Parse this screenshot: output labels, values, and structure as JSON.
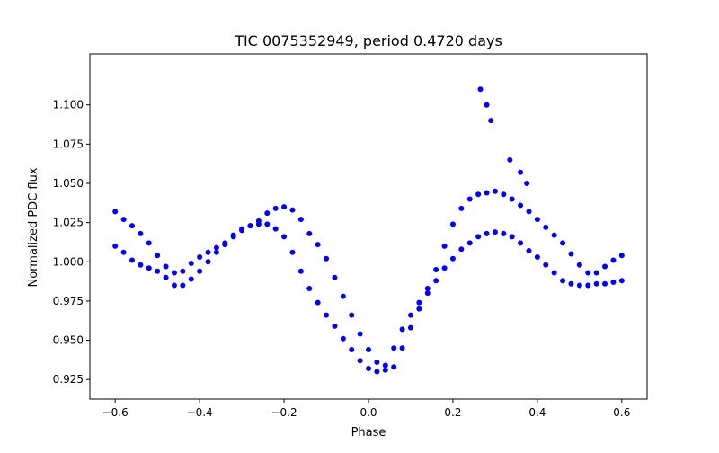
{
  "chart_data": {
    "type": "scatter",
    "title": "TIC 0075352949, period 0.4720 days",
    "xlabel": "Phase",
    "ylabel": "Normalized PDC flux",
    "xlim": [
      -0.66,
      0.66
    ],
    "ylim": [
      0.9125,
      1.1325
    ],
    "xticks": [
      -0.6,
      -0.4,
      -0.2,
      0.0,
      0.2,
      0.4,
      0.6
    ],
    "xtick_labels": [
      "−0.6",
      "−0.4",
      "−0.2",
      "0.0",
      "0.2",
      "0.4",
      "0.6"
    ],
    "yticks": [
      0.925,
      0.95,
      0.975,
      1.0,
      1.025,
      1.05,
      1.075,
      1.1
    ],
    "ytick_labels": [
      "0.925",
      "0.950",
      "0.975",
      "1.000",
      "1.025",
      "1.050",
      "1.075",
      "1.100"
    ],
    "grid": false,
    "marker_color": "#0000ff",
    "series": [
      {
        "x": [
          -0.6,
          -0.58,
          -0.56,
          -0.54,
          -0.52,
          -0.5,
          -0.48,
          -0.46,
          -0.44,
          -0.42,
          -0.4,
          -0.38,
          -0.36,
          -0.34,
          -0.32,
          -0.3,
          -0.28,
          -0.26,
          -0.24,
          -0.22,
          -0.2,
          -0.18,
          -0.16,
          -0.14,
          -0.12,
          -0.1,
          -0.08,
          -0.06,
          -0.04,
          -0.02,
          0.0,
          0.02,
          0.04,
          0.06,
          0.08,
          0.1,
          0.12,
          0.14,
          0.16,
          0.18,
          0.2,
          0.22,
          0.24,
          0.26,
          0.28,
          0.3,
          0.32,
          0.34,
          0.36,
          0.38,
          0.4,
          0.42,
          0.44,
          0.46,
          0.48,
          0.5,
          0.52,
          0.54,
          0.56,
          0.58,
          0.6
        ],
        "y": [
          1.032,
          1.027,
          1.023,
          1.018,
          1.012,
          1.004,
          0.997,
          0.993,
          0.994,
          0.999,
          1.003,
          1.006,
          1.009,
          1.012,
          1.017,
          1.021,
          1.023,
          1.024,
          1.024,
          1.021,
          1.016,
          1.006,
          0.994,
          0.983,
          0.974,
          0.966,
          0.959,
          0.951,
          0.944,
          0.937,
          0.932,
          0.93,
          0.934,
          0.945,
          0.957,
          0.966,
          0.974,
          0.983,
          0.995,
          1.01,
          1.024,
          1.034,
          1.04,
          1.043,
          1.044,
          1.045,
          1.043,
          1.04,
          1.036,
          1.032,
          1.027,
          1.022,
          1.017,
          1.012,
          1.005,
          0.998,
          0.993,
          0.993,
          0.997,
          1.001,
          1.004
        ]
      },
      {
        "x": [
          -0.6,
          -0.58,
          -0.56,
          -0.54,
          -0.52,
          -0.5,
          -0.48,
          -0.46,
          -0.44,
          -0.42,
          -0.4,
          -0.38,
          -0.36,
          -0.34,
          -0.32,
          -0.3,
          -0.28,
          -0.26,
          -0.24,
          -0.22,
          -0.2,
          -0.18,
          -0.16,
          -0.14,
          -0.12,
          -0.1,
          -0.08,
          -0.06,
          -0.04,
          -0.02,
          0.0,
          0.02,
          0.04,
          0.06,
          0.08,
          0.1,
          0.12,
          0.14,
          0.16,
          0.18,
          0.2,
          0.22,
          0.24,
          0.26,
          0.28,
          0.3,
          0.32,
          0.34,
          0.36,
          0.38,
          0.4,
          0.42,
          0.44,
          0.46,
          0.48,
          0.5,
          0.52,
          0.54,
          0.56,
          0.58,
          0.6
        ],
        "y": [
          1.01,
          1.006,
          1.001,
          0.998,
          0.996,
          0.994,
          0.99,
          0.985,
          0.985,
          0.989,
          0.994,
          1.0,
          1.006,
          1.011,
          1.016,
          1.02,
          1.023,
          1.026,
          1.031,
          1.034,
          1.035,
          1.033,
          1.027,
          1.018,
          1.011,
          1.002,
          0.99,
          0.978,
          0.966,
          0.954,
          0.944,
          0.936,
          0.931,
          0.933,
          0.945,
          0.958,
          0.97,
          0.98,
          0.988,
          0.996,
          1.002,
          1.008,
          1.012,
          1.016,
          1.018,
          1.019,
          1.018,
          1.016,
          1.012,
          1.007,
          1.003,
          0.998,
          0.993,
          0.988,
          0.986,
          0.985,
          0.985,
          0.986,
          0.986,
          0.987,
          0.988
        ]
      },
      {
        "x": [
          0.265,
          0.28,
          0.29,
          0.335,
          0.36,
          0.375
        ],
        "y": [
          1.11,
          1.1,
          1.09,
          1.065,
          1.057,
          1.05
        ]
      }
    ]
  }
}
